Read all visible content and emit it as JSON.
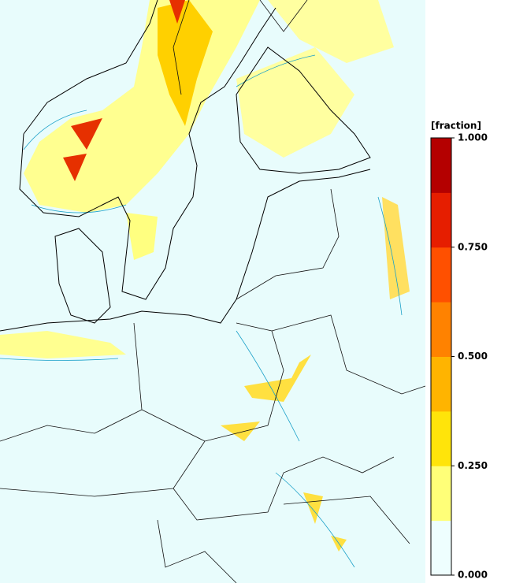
{
  "legend": {
    "title": "[fraction]",
    "range": [
      0,
      1
    ],
    "ticks": [
      {
        "value": 1,
        "label": "1.000"
      },
      {
        "value": 0.75,
        "label": "0.750"
      },
      {
        "value": 0.5,
        "label": "0.500"
      },
      {
        "value": 0.25,
        "label": "0.250"
      },
      {
        "value": 0,
        "label": "0.000"
      }
    ],
    "colors": [
      "#eefefe",
      "#ffffc4",
      "#ffff78",
      "#ffe40a",
      "#ffb400",
      "#ff8200",
      "#ff5000",
      "#e61e00",
      "#b40000"
    ]
  }
}
